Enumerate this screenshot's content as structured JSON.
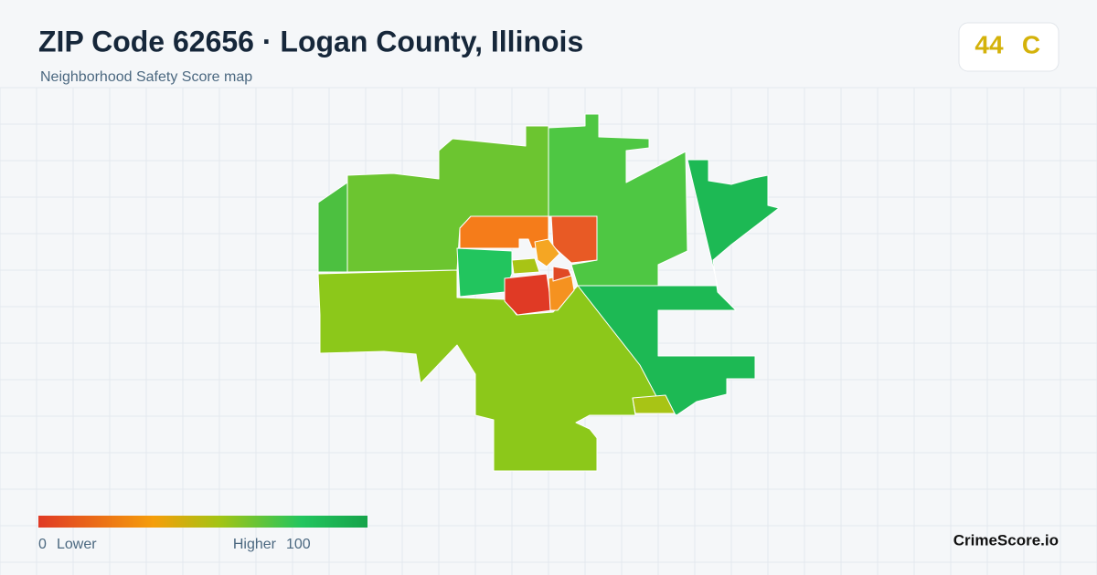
{
  "header": {
    "title": "ZIP Code 62656 · Logan County, Illinois",
    "subtitle": "Neighborhood Safety Score map"
  },
  "score": {
    "value": 44,
    "grade": "C"
  },
  "legend": {
    "min": 0,
    "low_label": "Lower",
    "high_label": "Higher",
    "max": 100
  },
  "brand": "CrimeScore.io"
}
